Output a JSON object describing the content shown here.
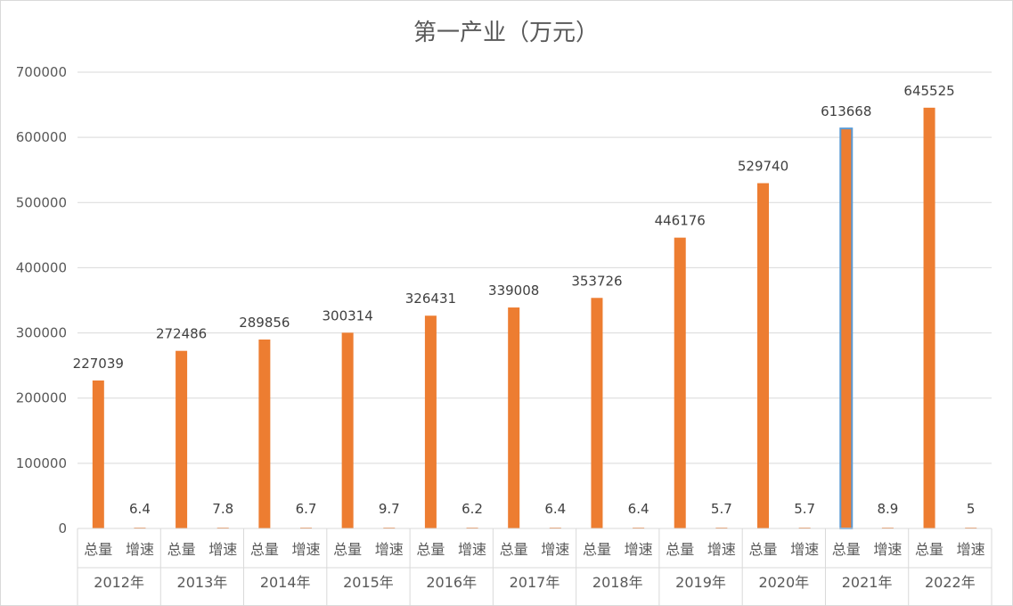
{
  "chart_data": {
    "type": "bar",
    "title": "第一产业（万元）",
    "xlabel": "",
    "ylabel": "",
    "ylim": [
      0,
      700000
    ],
    "yticks": [
      "0",
      "100000",
      "200000",
      "300000",
      "400000",
      "500000",
      "600000",
      "700000"
    ],
    "grid": true,
    "legend": "none",
    "bar_color": "#ED7D31",
    "highlight_border_color": "#5B9BD5",
    "groups": [
      "2012年",
      "2013年",
      "2014年",
      "2015年",
      "2016年",
      "2017年",
      "2018年",
      "2019年",
      "2020年",
      "2021年",
      "2022年"
    ],
    "subcategories": [
      "总量",
      "增速"
    ],
    "series": [
      {
        "name": "",
        "total": [
          227039,
          272486,
          289856,
          300314,
          326431,
          339008,
          353726,
          446176,
          529740,
          613668,
          645525
        ],
        "growth": [
          6.4,
          7.8,
          6.7,
          9.7,
          6.2,
          6.4,
          6.4,
          5.7,
          5.7,
          8.9,
          5
        ],
        "total_labels": [
          "227039",
          "272486",
          "289856",
          "300314",
          "326431",
          "339008",
          "353726",
          "446176",
          "529740",
          "613668",
          "645525"
        ],
        "growth_labels": [
          "6.4",
          "7.8",
          "6.7",
          "9.7",
          "6.2",
          "6.4",
          "6.4",
          "5.7",
          "5.7",
          "8.9",
          "5"
        ]
      }
    ],
    "highlighted_group": "2021年"
  }
}
